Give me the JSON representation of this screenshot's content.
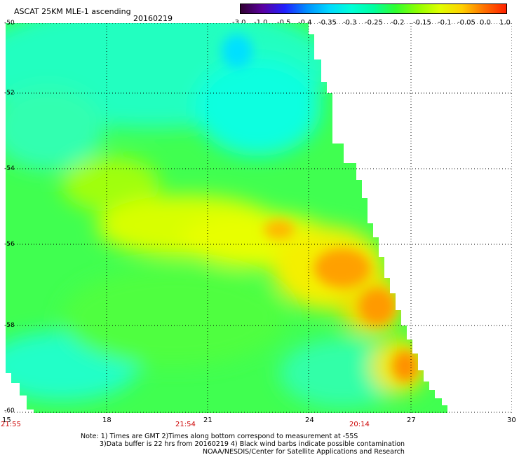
{
  "title": "ASCAT 25KM MLE-1 ascending",
  "date": "20160219",
  "colorbar": {
    "ticks": [
      "-3.0",
      "-1.0",
      "-0.5",
      "-0.4",
      "-0.35",
      "-0.3",
      "-0.25",
      "-0.2",
      "-0.15",
      "-0.1",
      "-0.05",
      "0.0",
      "1.0"
    ],
    "colors": [
      "#300030",
      "#5a00a0",
      "#2020ff",
      "#0090ff",
      "#00d8ff",
      "#00ffd8",
      "#00ffa0",
      "#30ff30",
      "#90ff00",
      "#e0ff00",
      "#ffd000",
      "#ff7000",
      "#ff2000"
    ]
  },
  "axes": {
    "lat_labels": [
      "-50",
      "-52",
      "-54",
      "-56",
      "-58",
      "-60"
    ],
    "lon_labels": [
      "15",
      "18",
      "21",
      "24",
      "27",
      "30"
    ],
    "lat_range": [
      -50,
      -60
    ],
    "lon_range": [
      15,
      30
    ],
    "time_labels": [
      "21:55",
      "21:54",
      "20:14"
    ]
  },
  "notes": [
    "Note: 1) Times are GMT 2)Times along bottom correspond to measurement at -55S",
    "3)Data buffer is 22 hrs from 20160219 4) Black wind barbs indicate possible contamination",
    "NOAA/NESDIS/Center for Satellite Applications and Research"
  ],
  "colors": {
    "cyan": "#00ffd8",
    "green": "#30ff30",
    "yellow": "#f0ff00",
    "orange": "#ff9000",
    "grid": "#000000"
  }
}
